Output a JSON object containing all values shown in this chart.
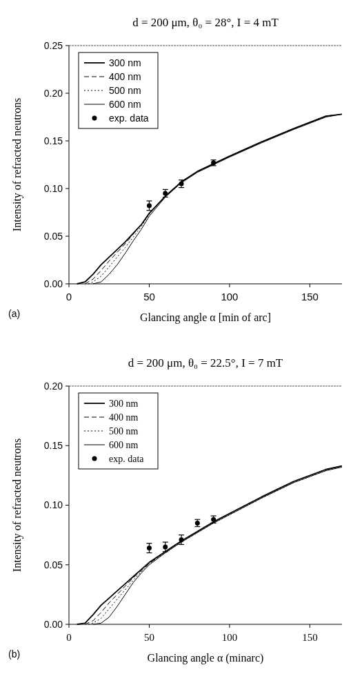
{
  "chart_data": [
    {
      "type": "line",
      "title": "d = 200 μm, θ₀ = 28°, I = 4 mT",
      "xlabel": "Glancing angle α [min of arc]",
      "ylabel": "Intensity of refracted neutrons",
      "xlim": [
        0,
        170
      ],
      "xticks": [
        0,
        50,
        100,
        150
      ],
      "ylim": [
        0,
        0.25
      ],
      "yticks": [
        {
          "value": 0,
          "label": "0.00"
        },
        {
          "value": 0.05,
          "label": "0.05"
        },
        {
          "value": 0.1,
          "label": "0.10"
        },
        {
          "value": 0.15,
          "label": "0.15"
        },
        {
          "value": 0.2,
          "label": "0.20"
        },
        {
          "value": 0.25,
          "label": "0.25"
        }
      ],
      "legend": "top left",
      "annotations": [
        "(a)"
      ],
      "series": [
        {
          "name": "300 nm",
          "color": "#000000",
          "line_style": "solid",
          "x": [
            5,
            10,
            15,
            20,
            25,
            30,
            35,
            40,
            45,
            50,
            60,
            70,
            80,
            90,
            100,
            120,
            140,
            160,
            170
          ],
          "values": [
            0,
            0.002,
            0.01,
            0.02,
            0.028,
            0.036,
            0.044,
            0.053,
            0.062,
            0.074,
            0.092,
            0.107,
            0.118,
            0.126,
            0.134,
            0.149,
            0.163,
            0.176,
            0.178
          ]
        },
        {
          "name": "400 nm",
          "color": "#000000",
          "line_style": "dashed",
          "x": [
            10,
            15,
            20,
            25,
            30,
            35,
            40,
            45,
            50,
            60,
            70,
            80,
            90,
            100,
            120,
            140,
            160,
            170
          ],
          "values": [
            0,
            0.005,
            0.014,
            0.024,
            0.033,
            0.042,
            0.052,
            0.062,
            0.074,
            0.092,
            0.107,
            0.118,
            0.126,
            0.134,
            0.149,
            0.163,
            0.176,
            0.178
          ]
        },
        {
          "name": "500 nm",
          "color": "#000000",
          "line_style": "dotted",
          "x": [
            12,
            15,
            20,
            25,
            30,
            35,
            40,
            45,
            50,
            60,
            70,
            80,
            90,
            100,
            120,
            140,
            160,
            170
          ],
          "values": [
            0,
            0.002,
            0.008,
            0.018,
            0.028,
            0.038,
            0.049,
            0.06,
            0.073,
            0.092,
            0.107,
            0.118,
            0.126,
            0.134,
            0.149,
            0.163,
            0.176,
            0.178
          ]
        },
        {
          "name": "600 nm",
          "color": "#000000",
          "line_style": "solid",
          "x": [
            15,
            20,
            25,
            30,
            35,
            40,
            45,
            50,
            60,
            70,
            80,
            90,
            100,
            120,
            140,
            160,
            170
          ],
          "values": [
            0,
            0.002,
            0.01,
            0.02,
            0.032,
            0.045,
            0.057,
            0.071,
            0.091,
            0.106,
            0.117,
            0.125,
            0.133,
            0.148,
            0.162,
            0.175,
            0.178
          ]
        },
        {
          "name": "exp. data",
          "type": "scatter",
          "marker": "circle",
          "color": "#000000",
          "x": [
            50,
            60,
            70,
            90
          ],
          "values": [
            0.082,
            0.095,
            0.105,
            0.127
          ],
          "errors": [
            0.005,
            0.004,
            0.004,
            0.003
          ]
        }
      ]
    },
    {
      "type": "line",
      "title": "d = 200 μm, θ₀ = 22.5°, I = 7 mT",
      "xlabel": "Glancing angle α (minarc)",
      "ylabel": "Intensity of refracted neutrons",
      "xlim": [
        0,
        170
      ],
      "xticks": [
        0,
        50,
        100,
        150
      ],
      "ylim": [
        0,
        0.2
      ],
      "yticks": [
        {
          "value": 0,
          "label": "0.00"
        },
        {
          "value": 0.05,
          "label": "0.05"
        },
        {
          "value": 0.1,
          "label": "0.10"
        },
        {
          "value": 0.15,
          "label": "0.15"
        },
        {
          "value": 0.2,
          "label": "0.20"
        }
      ],
      "legend": "top left",
      "annotations": [
        "(b)"
      ],
      "series": [
        {
          "name": "300 nm",
          "color": "#000000",
          "line_style": "solid",
          "x": [
            5,
            10,
            15,
            20,
            25,
            30,
            35,
            40,
            45,
            50,
            60,
            70,
            80,
            90,
            100,
            120,
            140,
            160,
            170
          ],
          "values": [
            0,
            0.001,
            0.008,
            0.016,
            0.022,
            0.028,
            0.034,
            0.04,
            0.046,
            0.052,
            0.061,
            0.07,
            0.078,
            0.086,
            0.093,
            0.107,
            0.12,
            0.13,
            0.133
          ]
        },
        {
          "name": "400 nm",
          "color": "#000000",
          "line_style": "dashed",
          "x": [
            10,
            15,
            20,
            25,
            30,
            35,
            40,
            45,
            50,
            60,
            70,
            80,
            90,
            100,
            120,
            140,
            160,
            170
          ],
          "values": [
            0,
            0.003,
            0.01,
            0.018,
            0.025,
            0.032,
            0.039,
            0.045,
            0.051,
            0.061,
            0.07,
            0.078,
            0.086,
            0.093,
            0.107,
            0.12,
            0.13,
            0.133
          ]
        },
        {
          "name": "500 nm",
          "color": "#000000",
          "line_style": "dotted",
          "x": [
            12,
            15,
            20,
            25,
            30,
            35,
            40,
            45,
            50,
            60,
            70,
            80,
            90,
            100,
            120,
            140,
            160,
            170
          ],
          "values": [
            0,
            0.001,
            0.005,
            0.013,
            0.021,
            0.029,
            0.037,
            0.044,
            0.051,
            0.06,
            0.069,
            0.077,
            0.085,
            0.092,
            0.106,
            0.119,
            0.129,
            0.132
          ]
        },
        {
          "name": "600 nm",
          "color": "#000000",
          "line_style": "solid",
          "x": [
            15,
            20,
            25,
            30,
            35,
            40,
            45,
            50,
            60,
            70,
            80,
            90,
            100,
            120,
            140,
            160,
            170
          ],
          "values": [
            0,
            0.001,
            0.006,
            0.015,
            0.025,
            0.035,
            0.043,
            0.05,
            0.06,
            0.069,
            0.077,
            0.085,
            0.092,
            0.106,
            0.119,
            0.129,
            0.132
          ]
        },
        {
          "name": "exp. data",
          "type": "scatter",
          "marker": "circle",
          "color": "#000000",
          "x": [
            50,
            60,
            70,
            80,
            90
          ],
          "values": [
            0.064,
            0.065,
            0.071,
            0.085,
            0.088
          ],
          "errors": [
            0.004,
            0.004,
            0.004,
            0.003,
            0.003
          ]
        }
      ]
    }
  ]
}
